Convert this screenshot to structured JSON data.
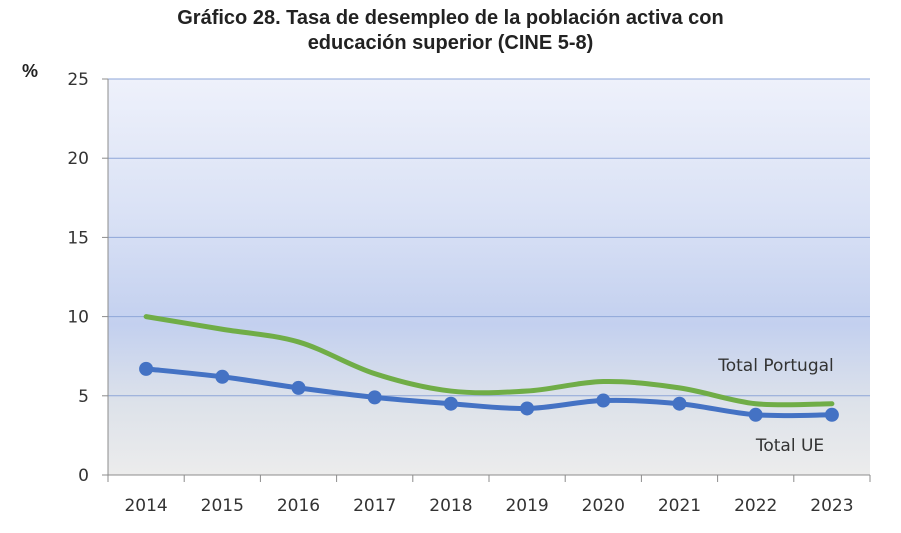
{
  "chart_data": {
    "type": "line",
    "title_lines": [
      "Gráfico 28. Tasa de desempleo de la población activa con",
      "educación superior (CINE 5-8)"
    ],
    "ylabel": "%",
    "xlabel": "",
    "categories": [
      "2014",
      "2015",
      "2016",
      "2017",
      "2018",
      "2019",
      "2020",
      "2021",
      "2022",
      "2023"
    ],
    "ylim": [
      0,
      25
    ],
    "yticks": [
      "0",
      "5",
      "10",
      "15",
      "20",
      "25"
    ],
    "grid": true,
    "series": [
      {
        "name": "Total Portugal",
        "color": "#70ad47",
        "markers": false,
        "values": [
          10.0,
          9.2,
          8.4,
          6.4,
          5.3,
          5.3,
          5.9,
          5.5,
          4.5,
          4.5
        ]
      },
      {
        "name": "Total UE",
        "color": "#4472c4",
        "markers": true,
        "values": [
          6.7,
          6.2,
          5.5,
          4.9,
          4.5,
          4.2,
          4.7,
          4.5,
          3.8,
          3.8
        ]
      }
    ]
  }
}
